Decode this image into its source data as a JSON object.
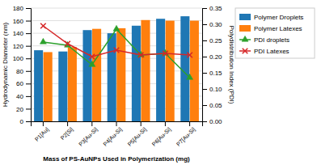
{
  "chart_data": {
    "type": "bar",
    "xlabel": "Mass of PS-AuNPs Used in Polymerization  (mg)",
    "ylabel": "Hydrodynamic Diameter (nm)",
    "y2label": "Polydistribution Index (PDI)",
    "categories": [
      "P1[Au]",
      "P2[Si]",
      "P3[Au-Si]",
      "P4[Au-Si]",
      "P5[Au-Si]",
      "P6[Au-Si]",
      "P7[Au-Si]"
    ],
    "series": [
      {
        "name": "Polymer Droplets",
        "type": "bar",
        "values": [
          113,
          111,
          145,
          140,
          152,
          163,
          167
        ]
      },
      {
        "name": "Polymer Latexes",
        "type": "bar",
        "values": [
          110,
          118,
          147,
          148,
          161,
          160,
          160
        ]
      },
      {
        "name": "PDI droplets",
        "type": "line",
        "axis": "y2",
        "marker": "triangle",
        "values": [
          0.245,
          0.235,
          0.175,
          0.285,
          0.205,
          0.21,
          0.135
        ]
      },
      {
        "name": "PDI Latexes",
        "type": "line",
        "axis": "y2",
        "marker": "x",
        "values": [
          0.295,
          0.24,
          0.2,
          0.22,
          0.205,
          0.21,
          0.205
        ]
      }
    ],
    "ylim": [
      0,
      180
    ],
    "yticks": [
      0,
      20,
      40,
      60,
      80,
      100,
      120,
      140,
      160,
      180
    ],
    "y2lim": [
      0,
      0.35
    ],
    "y2ticks": [
      {
        "value": 0,
        "label": "0.00"
      },
      0.05,
      {
        "value": 0.1,
        "label": "0.10"
      },
      0.15,
      {
        "value": 0.2,
        "label": "0.20"
      },
      0.25,
      {
        "value": 0.3,
        "label": "0.30"
      },
      0.35
    ],
    "grid": true,
    "legend": "right"
  }
}
